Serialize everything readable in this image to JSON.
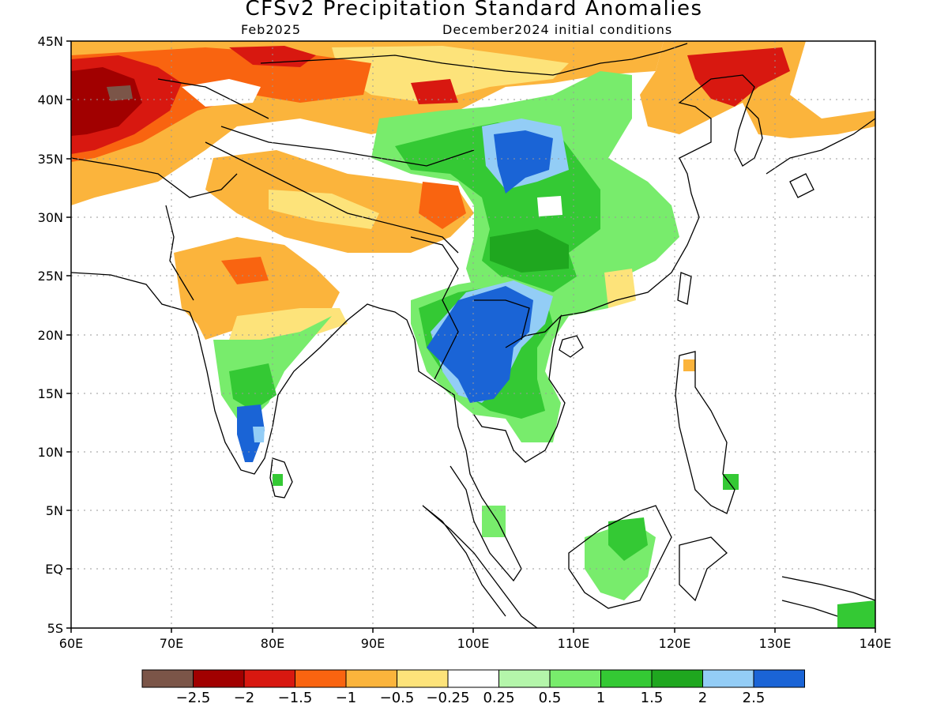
{
  "title": "CFSv2 Precipitation Standard Anomalies",
  "subtitle_left": "Feb2025",
  "subtitle_right": "December2024 initial conditions",
  "lat_ticks": [
    "45N",
    "40N",
    "35N",
    "30N",
    "25N",
    "20N",
    "15N",
    "10N",
    "5N",
    "EQ",
    "5S"
  ],
  "lon_ticks": [
    "60E",
    "70E",
    "80E",
    "90E",
    "100E",
    "110E",
    "120E",
    "130E",
    "140E"
  ],
  "colorbar": {
    "labels": [
      "−2.5",
      "−2",
      "−1.5",
      "−1",
      "−0.5",
      "−0.25",
      "0.25",
      "0.5",
      "1",
      "1.5",
      "2",
      "2.5"
    ],
    "colors": [
      "#7b5548",
      "#a10000",
      "#d81810",
      "#f96410",
      "#fbb43c",
      "#fde37a",
      "#ffffff",
      "#b4f5aa",
      "#78ec6c",
      "#34c934",
      "#1fa71f",
      "#93cdf6",
      "#1a64d6"
    ]
  },
  "palette": {
    "brown": "#7b5548",
    "darkred": "#a10000",
    "red": "#d81810",
    "orange": "#f96410",
    "lightorange": "#fbb43c",
    "yellow": "#fde37a",
    "lightgreen": "#b4f5aa",
    "green": "#78ec6c",
    "midgreen": "#34c934",
    "darkgreen": "#1fa71f",
    "lightblue": "#93cdf6",
    "blue": "#1a64d6"
  }
}
